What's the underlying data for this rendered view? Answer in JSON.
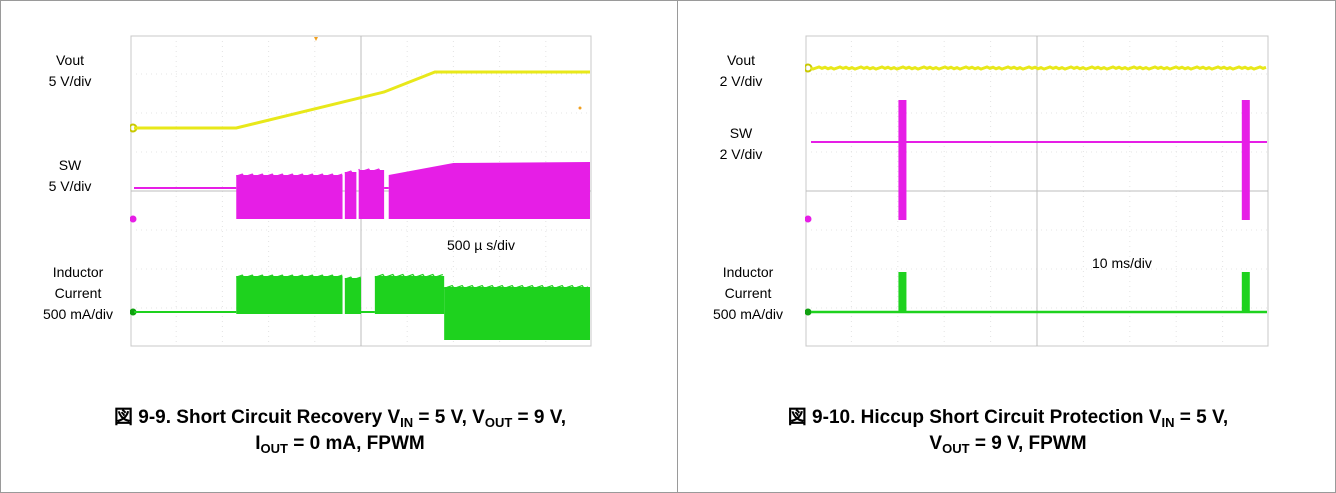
{
  "figures": [
    {
      "title_prefix": "図 9-9. Short Circuit Recovery V",
      "t1": "IN",
      "t2": " = 5 V, V",
      "t3": "OUT",
      "t4": " = 9 V,",
      "l2a": "I",
      "l2b": "OUT",
      "l2c": " = 0 mA, FPWM",
      "timebase": "500 µ s/div",
      "labels": {
        "vout": [
          "Vout",
          "5 V/div"
        ],
        "sw": [
          "SW",
          "5 V/div"
        ],
        "il": [
          "Inductor",
          "Current",
          "500 mA/div"
        ]
      }
    },
    {
      "title_prefix": "図 9-10. Hiccup Short Circuit Protection V",
      "t1": "IN",
      "t2": " = 5 V,",
      "l2a": "V",
      "l2b": "OUT",
      "l2c": " = 9 V, FPWM",
      "timebase": "10 ms/div",
      "labels": {
        "vout": [
          "Vout",
          "2 V/div"
        ],
        "sw": [
          "SW",
          "2 V/div"
        ],
        "il": [
          "Inductor",
          "Current",
          "500 mA/div"
        ]
      }
    }
  ],
  "colors": {
    "vout": "#e8e81a",
    "sw": "#e61ee6",
    "il": "#1ed21e",
    "grid": "#c8c8c8",
    "marker_orange": "#f0a020"
  },
  "chart_data": [
    {
      "type": "line",
      "title": "図 9-9. Short Circuit Recovery VIN = 5 V, VOUT = 9 V, IOUT = 0 mA, FPWM",
      "x_unit": "500 µ s/div",
      "grid_divisions": [
        10,
        8
      ],
      "series": [
        {
          "name": "Vout",
          "scale": "5 V/div",
          "x_div": [
            0,
            2.3,
            5.5,
            7.1,
            10
          ],
          "y_div": [
            0,
            0,
            2.9,
            4.8,
            4.8
          ]
        },
        {
          "name": "SW",
          "scale": "5 V/div",
          "x_div": [
            0,
            2.3,
            2.3,
            10
          ],
          "switching_band": true
        },
        {
          "name": "Inductor Current",
          "scale": "500 mA/div",
          "x_div": [
            0,
            2.3,
            6.8,
            10
          ],
          "switching_band": true
        }
      ]
    },
    {
      "type": "line",
      "title": "図 9-10. Hiccup Short Circuit Protection VIN = 5 V, VOUT = 9 V, FPWM",
      "x_unit": "10 ms/div",
      "grid_divisions": [
        10,
        8
      ],
      "series": [
        {
          "name": "Vout",
          "scale": "2 V/div",
          "x_div": [
            0,
            10
          ],
          "y_div": [
            0,
            0
          ]
        },
        {
          "name": "SW",
          "scale": "2 V/div",
          "pulses_at_div": [
            2.1,
            9.5
          ]
        },
        {
          "name": "Inductor Current",
          "scale": "500 mA/div",
          "pulses_at_div": [
            2.1,
            9.5
          ]
        }
      ]
    }
  ]
}
